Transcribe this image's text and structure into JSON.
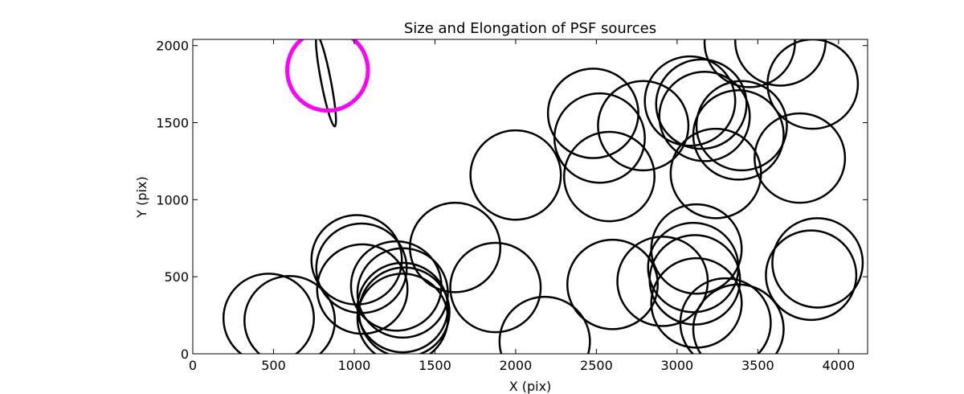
{
  "chart_data": {
    "type": "scatter",
    "title": "Size and Elongation of PSF sources",
    "xlabel": "X (pix)",
    "ylabel": "Y (pix)",
    "xlim": [
      0,
      4180
    ],
    "ylim": [
      0,
      2040
    ],
    "xticks": [
      0,
      500,
      1000,
      1500,
      2000,
      2500,
      3000,
      3500,
      4000
    ],
    "yticks": [
      0,
      500,
      1000,
      1500,
      2000
    ],
    "grid": false,
    "legend": "none",
    "highlight_color": "#ff00ff",
    "source_color": "#000000",
    "highlight": {
      "cx": 835,
      "cy": 1840,
      "r": 250
    },
    "sources": [
      {
        "cx": 825,
        "cy": 1770,
        "rx": 30,
        "ry": 300,
        "angle": -11
      },
      {
        "cx": 470,
        "cy": 230,
        "rx": 280,
        "ry": 290,
        "angle": 0
      },
      {
        "cx": 600,
        "cy": 215,
        "rx": 280,
        "ry": 290,
        "angle": 0
      },
      {
        "cx": 1015,
        "cy": 610,
        "rx": 280,
        "ry": 290,
        "angle": 0
      },
      {
        "cx": 1045,
        "cy": 555,
        "rx": 280,
        "ry": 290,
        "angle": 0
      },
      {
        "cx": 1050,
        "cy": 420,
        "rx": 280,
        "ry": 290,
        "angle": 0
      },
      {
        "cx": 1260,
        "cy": 440,
        "rx": 280,
        "ry": 290,
        "angle": 0
      },
      {
        "cx": 1300,
        "cy": 395,
        "rx": 280,
        "ry": 290,
        "angle": 0
      },
      {
        "cx": 1300,
        "cy": 300,
        "rx": 280,
        "ry": 290,
        "angle": 0
      },
      {
        "cx": 1310,
        "cy": 270,
        "rx": 280,
        "ry": 290,
        "angle": 0
      },
      {
        "cx": 1300,
        "cy": 230,
        "rx": 280,
        "ry": 290,
        "angle": 0
      },
      {
        "cx": 1625,
        "cy": 690,
        "rx": 280,
        "ry": 290,
        "angle": 0
      },
      {
        "cx": 1875,
        "cy": 430,
        "rx": 280,
        "ry": 290,
        "angle": 0
      },
      {
        "cx": 2000,
        "cy": 1160,
        "rx": 280,
        "ry": 290,
        "angle": 0
      },
      {
        "cx": 2180,
        "cy": 80,
        "rx": 280,
        "ry": 290,
        "angle": 0
      },
      {
        "cx": 2480,
        "cy": 1560,
        "rx": 280,
        "ry": 290,
        "angle": 0
      },
      {
        "cx": 2520,
        "cy": 1400,
        "rx": 280,
        "ry": 290,
        "angle": 0
      },
      {
        "cx": 2580,
        "cy": 1150,
        "rx": 280,
        "ry": 290,
        "angle": 0
      },
      {
        "cx": 2600,
        "cy": 450,
        "rx": 280,
        "ry": 290,
        "angle": 0
      },
      {
        "cx": 2790,
        "cy": 1480,
        "rx": 280,
        "ry": 290,
        "angle": 0
      },
      {
        "cx": 2910,
        "cy": 470,
        "rx": 280,
        "ry": 290,
        "angle": 0
      },
      {
        "cx": 3080,
        "cy": 1640,
        "rx": 280,
        "ry": 290,
        "angle": 0
      },
      {
        "cx": 3150,
        "cy": 1620,
        "rx": 280,
        "ry": 290,
        "angle": 0
      },
      {
        "cx": 3170,
        "cy": 1540,
        "rx": 280,
        "ry": 290,
        "angle": 0
      },
      {
        "cx": 3120,
        "cy": 680,
        "rx": 280,
        "ry": 290,
        "angle": 0
      },
      {
        "cx": 3100,
        "cy": 560,
        "rx": 280,
        "ry": 290,
        "angle": 0
      },
      {
        "cx": 3110,
        "cy": 480,
        "rx": 280,
        "ry": 290,
        "angle": 0
      },
      {
        "cx": 3120,
        "cy": 330,
        "rx": 280,
        "ry": 290,
        "angle": 0
      },
      {
        "cx": 3240,
        "cy": 1170,
        "rx": 280,
        "ry": 290,
        "angle": 0
      },
      {
        "cx": 3300,
        "cy": 200,
        "rx": 280,
        "ry": 290,
        "angle": 0
      },
      {
        "cx": 3380,
        "cy": 160,
        "rx": 280,
        "ry": 290,
        "angle": 0
      },
      {
        "cx": 3400,
        "cy": 1480,
        "rx": 280,
        "ry": 290,
        "angle": 0
      },
      {
        "cx": 3380,
        "cy": 1420,
        "rx": 280,
        "ry": 290,
        "angle": 0
      },
      {
        "cx": 3450,
        "cy": 2020,
        "rx": 280,
        "ry": 290,
        "angle": 0
      },
      {
        "cx": 3640,
        "cy": 2030,
        "rx": 280,
        "ry": 290,
        "angle": 0
      },
      {
        "cx": 3760,
        "cy": 1270,
        "rx": 280,
        "ry": 290,
        "angle": 0
      },
      {
        "cx": 3840,
        "cy": 1750,
        "rx": 280,
        "ry": 290,
        "angle": 0
      },
      {
        "cx": 3830,
        "cy": 510,
        "rx": 280,
        "ry": 290,
        "angle": 0
      },
      {
        "cx": 3870,
        "cy": 590,
        "rx": 280,
        "ry": 290,
        "angle": 0
      }
    ]
  }
}
